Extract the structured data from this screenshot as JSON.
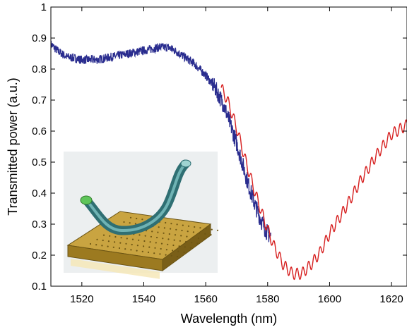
{
  "chart_data": {
    "type": "line",
    "xlabel": "Wavelength (nm)",
    "ylabel": "Transmitted power (a.u.)",
    "xlim": [
      1510,
      1625
    ],
    "ylim": [
      0.1,
      1.0
    ],
    "x_ticks": [
      1520,
      1540,
      1560,
      1580,
      1600,
      1620
    ],
    "y_ticks": [
      0.1,
      0.2,
      0.3,
      0.4,
      0.5,
      0.6,
      0.7,
      0.8,
      0.9,
      1
    ],
    "grid": false,
    "legend": "none",
    "series": [
      {
        "color": "#2a2d8f",
        "style": "noisy",
        "x": [
          1510,
          1512,
          1515,
          1520,
          1525,
          1530,
          1535,
          1540,
          1545,
          1548,
          1550,
          1553,
          1556,
          1560,
          1563,
          1566,
          1568,
          1570,
          1572,
          1574,
          1576,
          1578,
          1580,
          1581
        ],
        "y": [
          0.88,
          0.86,
          0.84,
          0.83,
          0.83,
          0.84,
          0.85,
          0.86,
          0.87,
          0.87,
          0.86,
          0.84,
          0.82,
          0.78,
          0.74,
          0.68,
          0.62,
          0.56,
          0.49,
          0.42,
          0.36,
          0.31,
          0.27,
          0.26
        ]
      },
      {
        "color": "#d61f1f",
        "style": "oscillating",
        "x": [
          1565,
          1567,
          1570,
          1573,
          1576,
          1579,
          1582,
          1585,
          1588,
          1591,
          1594,
          1597,
          1600,
          1605,
          1610,
          1615,
          1620,
          1625
        ],
        "y": [
          0.74,
          0.7,
          0.61,
          0.5,
          0.4,
          0.31,
          0.23,
          0.17,
          0.14,
          0.14,
          0.17,
          0.21,
          0.27,
          0.35,
          0.44,
          0.52,
          0.59,
          0.62
        ]
      }
    ]
  },
  "inset": {
    "image": "fiber-taper-on-photonic-crystal-chip"
  }
}
